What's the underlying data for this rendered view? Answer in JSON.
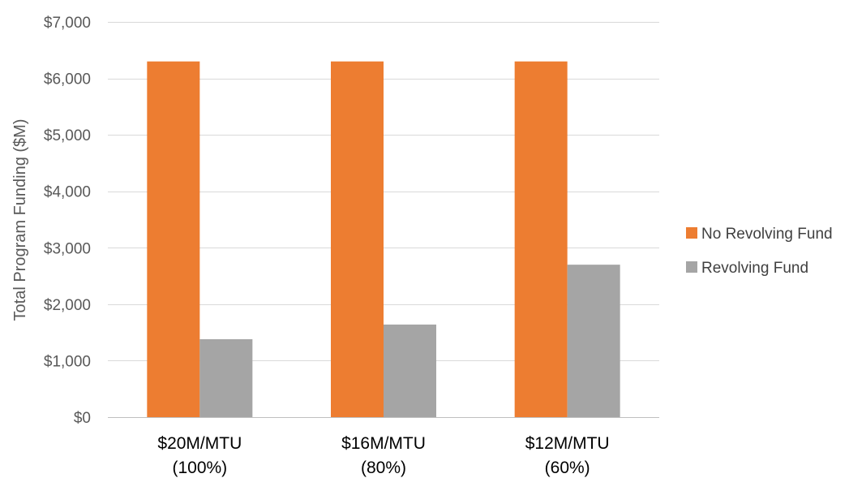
{
  "chart_data": {
    "type": "bar",
    "title": "",
    "xlabel": "",
    "ylabel": "Total Program Funding ($M)",
    "categories": [
      "$20M/MTU\n(100%)",
      "$16M/MTU\n(80%)",
      "$12M/MTU\n(60%)"
    ],
    "series": [
      {
        "name": "No Revolving Fund",
        "color": "#ED7D31",
        "values": [
          6300,
          6300,
          6300
        ]
      },
      {
        "name": "Revolving Fund",
        "color": "#A5A5A5",
        "values": [
          1380,
          1640,
          2700
        ]
      }
    ],
    "ylim": [
      0,
      7000
    ],
    "yticks": [
      0,
      1000,
      2000,
      3000,
      4000,
      5000,
      6000,
      7000
    ],
    "ytick_labels": [
      "$0",
      "$1,000",
      "$2,000",
      "$3,000",
      "$4,000",
      "$5,000",
      "$6,000",
      "$7,000"
    ],
    "grid": true,
    "legend_position": "right"
  }
}
